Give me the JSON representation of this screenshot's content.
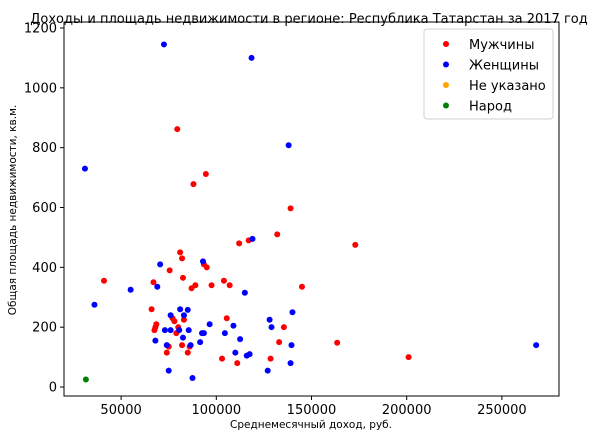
{
  "chart_data": {
    "type": "scatter",
    "title": "Доходы и площадь недвижимости в регионе: Республика Татарстан за 2017 год",
    "xlabel": "Среднемесячный доход, руб.",
    "ylabel": "Общая площадь недвижимости, кв.м.",
    "xlim": [
      20000,
      280000
    ],
    "ylim": [
      -30,
      1220
    ],
    "x_ticks": [
      50000,
      100000,
      150000,
      200000,
      250000
    ],
    "y_ticks": [
      0,
      200,
      400,
      600,
      800,
      1000,
      1200
    ],
    "legend_position": "top-right",
    "grid": false,
    "series": [
      {
        "name": "Мужчины",
        "color": "#ff0000",
        "points": [
          [
            41000,
            355
          ],
          [
            66000,
            260
          ],
          [
            67000,
            350
          ],
          [
            67500,
            190
          ],
          [
            68000,
            200
          ],
          [
            68500,
            210
          ],
          [
            74000,
            115
          ],
          [
            75000,
            135
          ],
          [
            75500,
            390
          ],
          [
            77000,
            230
          ],
          [
            78000,
            220
          ],
          [
            79000,
            180
          ],
          [
            79500,
            862
          ],
          [
            80000,
            200
          ],
          [
            81000,
            450
          ],
          [
            82000,
            430
          ],
          [
            82500,
            365
          ],
          [
            82000,
            140
          ],
          [
            83000,
            225
          ],
          [
            85000,
            115
          ],
          [
            86000,
            135
          ],
          [
            87000,
            330
          ],
          [
            88000,
            678
          ],
          [
            89000,
            340
          ],
          [
            93500,
            410
          ],
          [
            94500,
            712
          ],
          [
            95000,
            400
          ],
          [
            97500,
            340
          ],
          [
            103000,
            95
          ],
          [
            104000,
            355
          ],
          [
            105500,
            230
          ],
          [
            107000,
            340
          ],
          [
            111000,
            80
          ],
          [
            112000,
            480
          ],
          [
            117000,
            490
          ],
          [
            128500,
            95
          ],
          [
            132000,
            510
          ],
          [
            133000,
            150
          ],
          [
            135500,
            200
          ],
          [
            139000,
            597
          ],
          [
            145000,
            335
          ],
          [
            163500,
            148
          ],
          [
            173000,
            475
          ],
          [
            201000,
            100
          ]
        ]
      },
      {
        "name": "Женщины",
        "color": "#0000ff",
        "points": [
          [
            31000,
            730
          ],
          [
            36000,
            275
          ],
          [
            55000,
            325
          ],
          [
            68000,
            155
          ],
          [
            69000,
            335
          ],
          [
            70500,
            410
          ],
          [
            72500,
            1145
          ],
          [
            73000,
            190
          ],
          [
            74000,
            140
          ],
          [
            75000,
            55
          ],
          [
            76000,
            240
          ],
          [
            76000,
            190
          ],
          [
            80500,
            190
          ],
          [
            81000,
            260
          ],
          [
            82500,
            165
          ],
          [
            83000,
            240
          ],
          [
            85000,
            258
          ],
          [
            85500,
            190
          ],
          [
            86500,
            140
          ],
          [
            87500,
            30
          ],
          [
            91500,
            150
          ],
          [
            92500,
            180
          ],
          [
            93000,
            420
          ],
          [
            93500,
            180
          ],
          [
            96500,
            210
          ],
          [
            104500,
            180
          ],
          [
            109000,
            205
          ],
          [
            110000,
            115
          ],
          [
            112500,
            160
          ],
          [
            115000,
            315
          ],
          [
            116000,
            105
          ],
          [
            117500,
            110
          ],
          [
            118500,
            1100
          ],
          [
            119000,
            495
          ],
          [
            127000,
            55
          ],
          [
            128000,
            225
          ],
          [
            129000,
            200
          ],
          [
            138000,
            808
          ],
          [
            139000,
            80
          ],
          [
            139500,
            140
          ],
          [
            140000,
            250
          ],
          [
            268000,
            140
          ]
        ]
      },
      {
        "name": "Не указано",
        "color": "#ffa500",
        "points": []
      },
      {
        "name": "Народ",
        "color": "#008000",
        "points": [
          [
            31500,
            25
          ]
        ]
      }
    ]
  }
}
